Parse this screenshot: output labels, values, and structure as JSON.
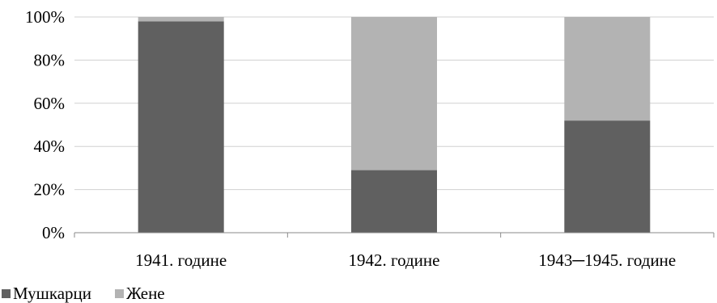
{
  "chart_data": {
    "type": "bar",
    "stacked": true,
    "categories": [
      "1941. године",
      "1942. године",
      "1943─1945. године"
    ],
    "series": [
      {
        "name": "Мушкарци",
        "values": [
          98,
          29,
          52
        ],
        "color": "#606060"
      },
      {
        "name": "Жене",
        "values": [
          2,
          71,
          48
        ],
        "color": "#b3b3b3"
      }
    ],
    "ylim": [
      0,
      100
    ],
    "yticks": [
      "0%",
      "20%",
      "40%",
      "60%",
      "80%",
      "100%"
    ],
    "grid": true,
    "legend_position": "bottom-left",
    "title": "",
    "xlabel": "",
    "ylabel": ""
  }
}
